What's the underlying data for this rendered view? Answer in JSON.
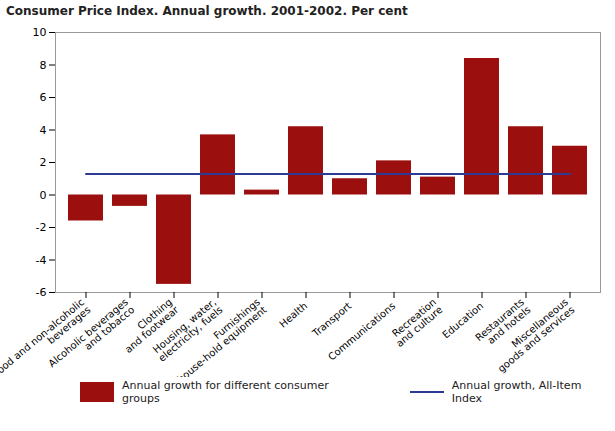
{
  "chart_data": {
    "type": "bar",
    "title": "Consumer Price Index. Annual growth. 2001-2002. Per cent",
    "categories": [
      "Food and non-alcoholic beverages",
      "Alcoholic beverages and tobacco",
      "Clothing and footwear",
      "Housing, water, electricity, fuels",
      "Furnishings house-hold equipment",
      "Health",
      "Transport",
      "Communications",
      "Recreation and culture",
      "Education",
      "Restaurants and hotels",
      "Miscellaneous goods and services"
    ],
    "series": [
      {
        "name": "Annual growth for different consumer groups",
        "type": "bar",
        "color": "#9b0f0f",
        "values": [
          -1.6,
          -0.7,
          -5.5,
          3.7,
          0.3,
          4.2,
          1.0,
          2.1,
          1.1,
          8.4,
          4.2,
          3.0
        ]
      },
      {
        "name": "Annual growth, All-Item Index",
        "type": "line",
        "color": "#2c3a96",
        "values": [
          1.3,
          1.3,
          1.3,
          1.3,
          1.3,
          1.3,
          1.3,
          1.3,
          1.3,
          1.3,
          1.3,
          1.3
        ]
      }
    ],
    "ylim": [
      -6,
      10
    ],
    "yticks": [
      -6,
      -4,
      -2,
      0,
      2,
      4,
      6,
      8,
      10
    ],
    "grid": false,
    "legend": "bottom"
  }
}
